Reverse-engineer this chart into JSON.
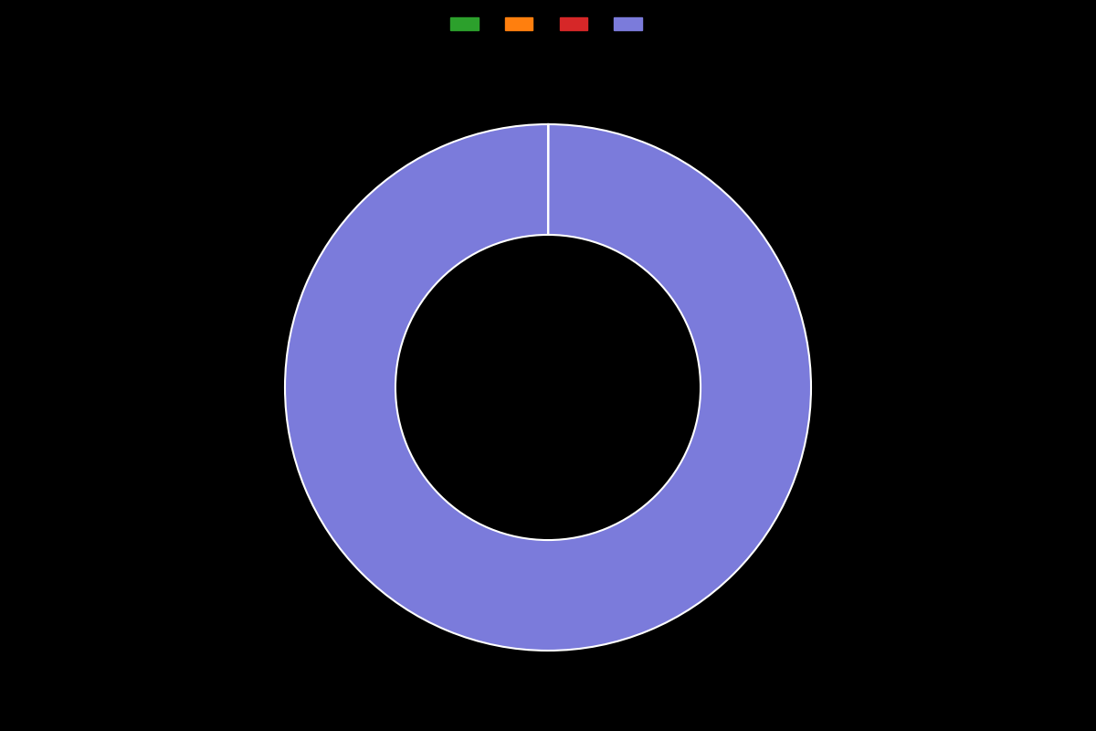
{
  "values": [
    0.01,
    0.01,
    0.01,
    99.97
  ],
  "colors": [
    "#2ca02c",
    "#ff7f0e",
    "#d62728",
    "#7b7bdb"
  ],
  "legend_labels": [
    "",
    "",
    "",
    ""
  ],
  "background_color": "#000000",
  "donut_width": 0.42,
  "startangle": 90,
  "edge_color": "#ffffff",
  "edge_linewidth": 1.5,
  "figsize": [
    12.0,
    8.0
  ],
  "dpi": 100
}
